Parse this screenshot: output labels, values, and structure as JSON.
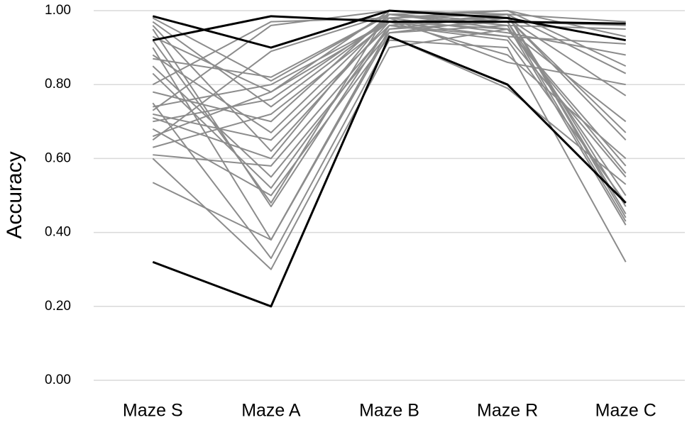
{
  "chart_data": {
    "type": "line",
    "y_label": "Accuracy",
    "categories": [
      "Maze S",
      "Maze A",
      "Maze B",
      "Maze R",
      "Maze C"
    ],
    "ylim": [
      0,
      1
    ],
    "yticks": [
      {
        "value": 0,
        "label": "0.00"
      },
      {
        "value": 0.2,
        "label": "0.20"
      },
      {
        "value": 0.4,
        "label": "0.40"
      },
      {
        "value": 0.6,
        "label": "0.60"
      },
      {
        "value": 0.8,
        "label": "0.80"
      },
      {
        "value": 1,
        "label": "1.00"
      }
    ],
    "grid": true,
    "series": [
      {
        "color": "#8c8c8c",
        "values": [
          0.98,
          0.81,
          0.99,
          0.97,
          0.96
        ]
      },
      {
        "color": "#8c8c8c",
        "values": [
          0.97,
          0.74,
          0.98,
          0.99,
          0.83
        ]
      },
      {
        "color": "#8c8c8c",
        "values": [
          0.96,
          0.62,
          0.97,
          0.95,
          0.58
        ]
      },
      {
        "color": "#8c8c8c",
        "values": [
          0.95,
          0.47,
          0.96,
          0.93,
          0.55
        ]
      },
      {
        "color": "#8c8c8c",
        "values": [
          0.93,
          0.78,
          1.0,
          0.98,
          0.67
        ]
      },
      {
        "color": "#8c8c8c",
        "values": [
          0.9,
          0.38,
          0.95,
          0.99,
          0.45
        ]
      },
      {
        "color": "#8c8c8c",
        "values": [
          0.87,
          0.82,
          0.99,
          1.0,
          0.93
        ]
      },
      {
        "color": "#8c8c8c",
        "values": [
          0.85,
          0.55,
          0.94,
          0.96,
          0.42
        ]
      },
      {
        "color": "#8c8c8c",
        "values": [
          0.8,
          0.97,
          0.98,
          0.94,
          0.88
        ]
      },
      {
        "color": "#8c8c8c",
        "values": [
          0.78,
          0.7,
          0.99,
          0.97,
          0.5
        ]
      },
      {
        "color": "#8c8c8c",
        "values": [
          0.75,
          0.33,
          0.92,
          0.9,
          0.32
        ]
      },
      {
        "color": "#8c8c8c",
        "values": [
          0.74,
          0.8,
          0.97,
          0.98,
          0.77
        ]
      },
      {
        "color": "#8c8c8c",
        "values": [
          0.73,
          0.96,
          1.0,
          0.99,
          0.97
        ]
      },
      {
        "color": "#8c8c8c",
        "values": [
          0.72,
          0.65,
          0.96,
          0.92,
          0.48
        ]
      },
      {
        "color": "#8c8c8c",
        "values": [
          0.7,
          0.76,
          0.98,
          1.0,
          0.85
        ]
      },
      {
        "color": "#8c8c8c",
        "values": [
          0.68,
          0.5,
          0.93,
          0.79,
          0.53
        ]
      },
      {
        "color": "#8c8c8c",
        "values": [
          0.65,
          0.89,
          0.99,
          0.96,
          0.95
        ]
      },
      {
        "color": "#8c8c8c",
        "values": [
          0.63,
          0.72,
          0.97,
          0.88,
          0.6
        ]
      },
      {
        "color": "#8c8c8c",
        "values": [
          0.61,
          0.58,
          0.95,
          0.97,
          0.43
        ]
      },
      {
        "color": "#8c8c8c",
        "values": [
          0.6,
          0.3,
          0.9,
          0.95,
          0.56
        ]
      },
      {
        "color": "#8c8c8c",
        "values": [
          0.535,
          0.38,
          0.94,
          0.98,
          0.65
        ]
      },
      {
        "color": "#8c8c8c",
        "values": [
          0.88,
          0.67,
          0.98,
          0.86,
          0.8
        ]
      },
      {
        "color": "#8c8c8c",
        "values": [
          0.83,
          0.52,
          0.96,
          0.99,
          0.44
        ]
      },
      {
        "color": "#8c8c8c",
        "values": [
          0.71,
          0.6,
          0.99,
          0.95,
          0.7
        ]
      },
      {
        "color": "#8c8c8c",
        "values": [
          0.66,
          0.78,
          0.97,
          0.93,
          0.91
        ]
      },
      {
        "color": "#8c8c8c",
        "values": [
          0.92,
          0.48,
          1.0,
          0.99,
          0.47
        ]
      },
      {
        "color": "#000000",
        "values": [
          0.32,
          0.2,
          0.93,
          0.8,
          0.48
        ]
      },
      {
        "color": "#000000",
        "values": [
          0.985,
          0.9,
          1.0,
          0.98,
          0.92
        ]
      },
      {
        "color": "#000000",
        "values": [
          0.92,
          0.985,
          0.97,
          0.97,
          0.965
        ]
      }
    ]
  }
}
